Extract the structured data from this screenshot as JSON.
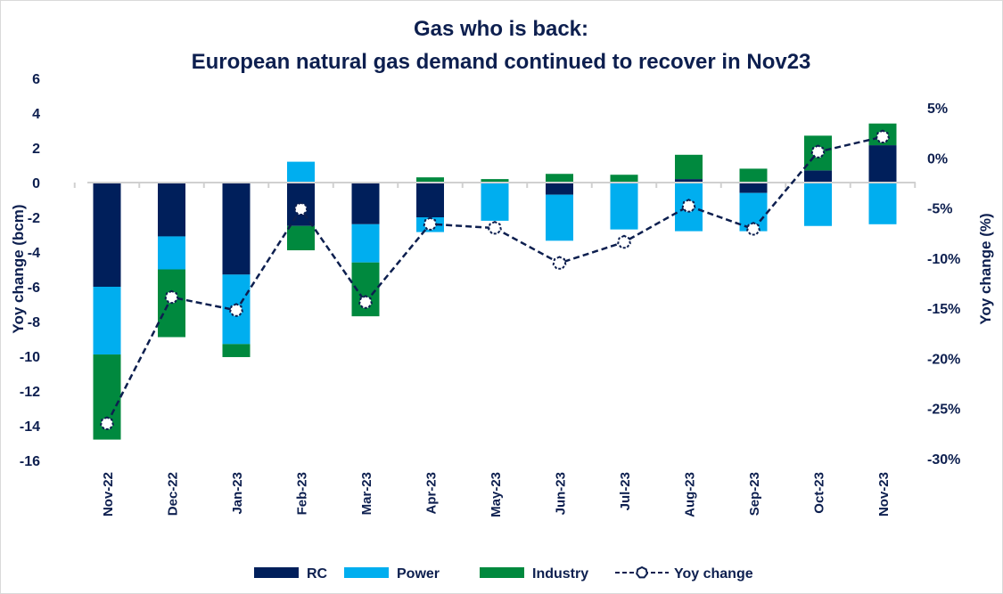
{
  "chart_data": {
    "type": "bar",
    "stacked": true,
    "title": "Gas who is back:",
    "subtitle": "European natural gas demand continued to recover in Nov23",
    "xlabel": "",
    "ylabel": "Yoy change (bcm)",
    "y2label": "Yoy change (%)",
    "ylim": [
      -16,
      6
    ],
    "yticks": [
      6,
      4,
      2,
      0,
      -2,
      -4,
      -6,
      -8,
      -10,
      -12,
      -14,
      -16
    ],
    "y2lim": [
      -30,
      5
    ],
    "y2ticks": [
      "5%",
      "0%",
      "-5%",
      "-10%",
      "-15%",
      "-20%",
      "-25%",
      "-30%"
    ],
    "grid": false,
    "legend": "bottom",
    "categories": [
      "Nov-22",
      "Dec-22",
      "Jan-23",
      "Feb-23",
      "Mar-23",
      "Apr-23",
      "May-23",
      "Jun-23",
      "Jul-23",
      "Aug-23",
      "Sep-23",
      "Oct-23",
      "Nov-23"
    ],
    "series": [
      {
        "name": "RC",
        "kind": "bar",
        "color": "#001f5b",
        "values": [
          -6.0,
          -3.1,
          -5.3,
          -2.5,
          -2.4,
          -2.0,
          0.05,
          -0.7,
          0.0,
          0.2,
          -0.6,
          0.7,
          2.15
        ]
      },
      {
        "name": "Power",
        "kind": "bar",
        "color": "#00aeef",
        "values": [
          -3.9,
          -1.9,
          -4.0,
          1.2,
          -2.2,
          -0.85,
          -2.2,
          -2.65,
          -2.7,
          -2.8,
          -2.2,
          -2.5,
          -2.4
        ]
      },
      {
        "name": "Industry",
        "kind": "bar",
        "color": "#00893e",
        "values": [
          -4.9,
          -3.9,
          -0.75,
          -1.4,
          -3.1,
          0.3,
          0.15,
          0.5,
          0.45,
          1.4,
          0.8,
          2.0,
          1.25
        ]
      },
      {
        "name": "Yoy change",
        "kind": "line",
        "axis": "right",
        "color": "#0d1f4f",
        "unit": "%",
        "values": [
          -26.5,
          -13.9,
          -15.2,
          -5.1,
          -14.4,
          -6.6,
          -7.0,
          -10.5,
          -8.4,
          -4.8,
          -7.1,
          0.6,
          2.1
        ]
      }
    ]
  }
}
